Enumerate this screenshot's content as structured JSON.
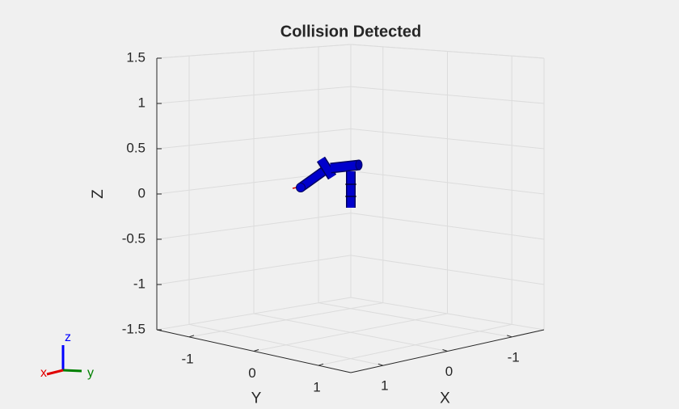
{
  "chart_data": {
    "type": "robot3d",
    "title": "Collision Detected",
    "xlabel": "X",
    "ylabel": "Y",
    "zlabel": "Z",
    "xlim": [
      -1.5,
      1.5
    ],
    "ylim": [
      -1.5,
      1.5
    ],
    "zlim": [
      -1.5,
      1.5
    ],
    "xticks": [
      -1,
      0,
      1
    ],
    "yticks": [
      -1,
      0,
      1
    ],
    "zticks": [
      -1.5,
      -1,
      -0.5,
      0,
      0.5,
      1,
      1.5
    ],
    "grid": true,
    "triad_labels": {
      "x": "x",
      "y": "y",
      "z": "z"
    }
  }
}
